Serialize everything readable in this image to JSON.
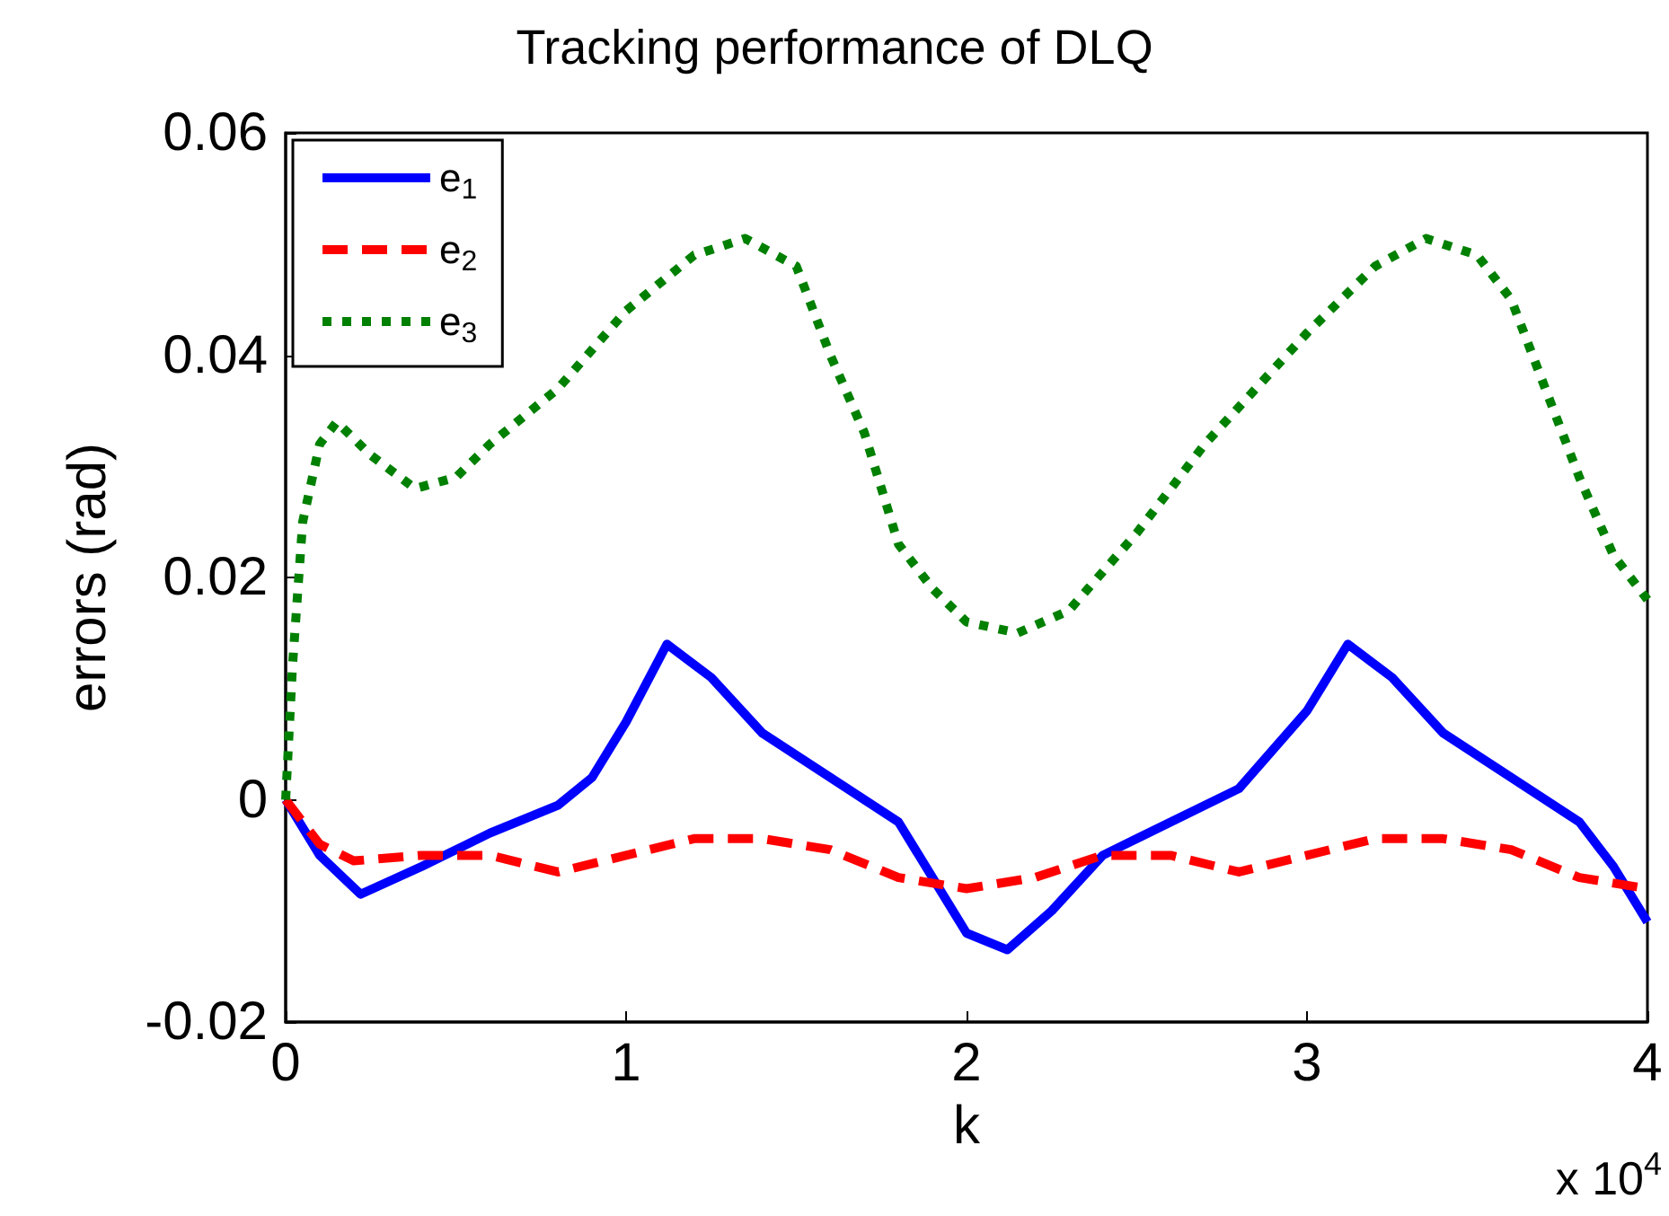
{
  "chart_data": {
    "type": "line",
    "title": "Tracking performance of DLQ",
    "xlabel": "k",
    "ylabel": "errors (rad)",
    "annotations": [
      "x 10$^{4}$"
    ],
    "xlim": [
      0,
      4
    ],
    "xticks": [
      0,
      1,
      2,
      3,
      4
    ],
    "ylim": [
      -0.02,
      0.06
    ],
    "yticks": [
      -0.02,
      0,
      0.02,
      0.04,
      0.06
    ],
    "grid": false,
    "legend": "top left",
    "marker": "none",
    "series": [
      {
        "name": "e$_{1}$",
        "color": "#0000ff",
        "line_style": "solid",
        "x": [
          0,
          0.1,
          0.22,
          0.4,
          0.6,
          0.8,
          0.9,
          1.0,
          1.12,
          1.25,
          1.4,
          1.6,
          1.8,
          1.9,
          2.0,
          2.12,
          2.25,
          2.4,
          2.6,
          2.8,
          3.0,
          3.12,
          3.25,
          3.4,
          3.6,
          3.8,
          3.9,
          4.0
        ],
        "values": [
          0,
          -0.005,
          -0.0085,
          -0.006,
          -0.003,
          -0.0005,
          0.002,
          0.007,
          0.014,
          0.011,
          0.006,
          0.002,
          -0.002,
          -0.007,
          -0.012,
          -0.0135,
          -0.01,
          -0.005,
          -0.002,
          0.001,
          0.008,
          0.014,
          0.011,
          0.006,
          0.002,
          -0.002,
          -0.006,
          -0.011
        ]
      },
      {
        "name": "e$_{2}$",
        "color": "#ff0000",
        "line_style": "dashed",
        "x": [
          0,
          0.1,
          0.2,
          0.4,
          0.6,
          0.8,
          1.0,
          1.2,
          1.4,
          1.6,
          1.8,
          2.0,
          2.2,
          2.4,
          2.6,
          2.8,
          3.0,
          3.2,
          3.4,
          3.6,
          3.8,
          4.0
        ],
        "values": [
          0,
          -0.004,
          -0.0055,
          -0.005,
          -0.005,
          -0.0065,
          -0.005,
          -0.0035,
          -0.0035,
          -0.0045,
          -0.007,
          -0.008,
          -0.007,
          -0.005,
          -0.005,
          -0.0065,
          -0.005,
          -0.0035,
          -0.0035,
          -0.0045,
          -0.007,
          -0.008
        ]
      },
      {
        "name": "e$_{3}$",
        "color": "#008000",
        "line_style": "dotted",
        "x": [
          0,
          0.02,
          0.05,
          0.1,
          0.15,
          0.25,
          0.38,
          0.5,
          0.6,
          0.8,
          1.0,
          1.2,
          1.35,
          1.5,
          1.6,
          1.7,
          1.8,
          1.9,
          2.0,
          2.15,
          2.3,
          2.5,
          2.7,
          3.0,
          3.2,
          3.35,
          3.5,
          3.6,
          3.7,
          3.8,
          3.9,
          4.0
        ],
        "values": [
          0,
          0.012,
          0.025,
          0.032,
          0.034,
          0.031,
          0.028,
          0.029,
          0.032,
          0.037,
          0.044,
          0.049,
          0.0505,
          0.048,
          0.04,
          0.033,
          0.023,
          0.019,
          0.016,
          0.015,
          0.017,
          0.024,
          0.032,
          0.042,
          0.048,
          0.0505,
          0.049,
          0.045,
          0.037,
          0.029,
          0.022,
          0.018
        ]
      }
    ]
  }
}
